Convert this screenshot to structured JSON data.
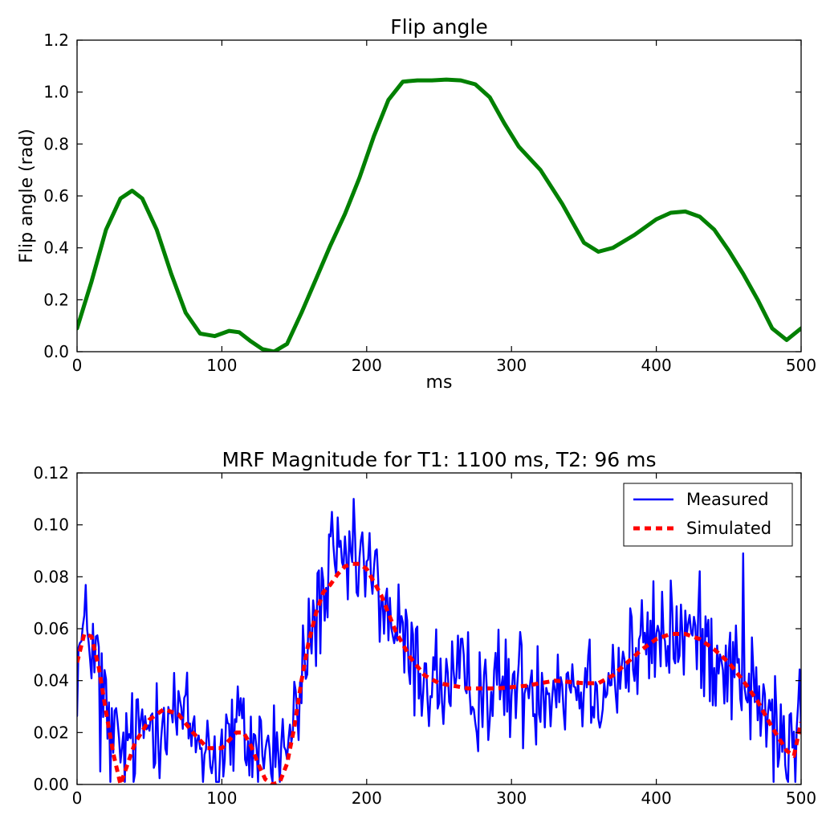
{
  "chart_data": [
    {
      "type": "line",
      "title": "Flip angle",
      "xlabel": "ms",
      "ylabel": "Flip angle (rad)",
      "xlim": [
        0,
        500
      ],
      "ylim": [
        0,
        1.2
      ],
      "xticks": [
        "0",
        "100",
        "200",
        "300",
        "400",
        "500"
      ],
      "yticks": [
        "0.0",
        "0.2",
        "0.4",
        "0.6",
        "0.8",
        "1.0",
        "1.2"
      ],
      "grid": false,
      "series": [
        {
          "name": "Flip angle",
          "color": "#008000",
          "x": [
            0,
            10,
            20,
            30,
            38,
            45,
            55,
            65,
            75,
            85,
            95,
            105,
            112,
            120,
            128,
            136,
            145,
            155,
            165,
            175,
            185,
            195,
            205,
            215,
            225,
            235,
            245,
            255,
            265,
            275,
            285,
            295,
            305,
            320,
            335,
            350,
            360,
            370,
            385,
            400,
            410,
            420,
            430,
            440,
            450,
            460,
            470,
            480,
            490,
            500
          ],
          "values": [
            0.09,
            0.27,
            0.47,
            0.59,
            0.62,
            0.59,
            0.47,
            0.3,
            0.15,
            0.07,
            0.06,
            0.08,
            0.075,
            0.04,
            0.01,
            0.0,
            0.03,
            0.15,
            0.28,
            0.41,
            0.53,
            0.67,
            0.83,
            0.97,
            1.04,
            1.045,
            1.045,
            1.048,
            1.045,
            1.03,
            0.98,
            0.88,
            0.79,
            0.7,
            0.57,
            0.42,
            0.385,
            0.4,
            0.45,
            0.51,
            0.535,
            0.54,
            0.52,
            0.47,
            0.39,
            0.3,
            0.2,
            0.09,
            0.045,
            0.09
          ]
        }
      ]
    },
    {
      "type": "line",
      "title": "MRF Magnitude for T1: 1100 ms, T2: 96 ms",
      "xlabel": "",
      "ylabel": "",
      "xlim": [
        0,
        500
      ],
      "ylim": [
        0,
        0.12
      ],
      "xticks": [
        "0",
        "100",
        "200",
        "300",
        "400",
        "500"
      ],
      "yticks": [
        "0.00",
        "0.02",
        "0.04",
        "0.06",
        "0.08",
        "0.10",
        "0.12"
      ],
      "grid": false,
      "legend": {
        "position": "top-right",
        "entries": [
          "Measured",
          "Simulated"
        ]
      },
      "series": [
        {
          "name": "Measured",
          "color": "#0000ff",
          "style": "solid",
          "noise_amplitude": 0.016,
          "spikes": [
            {
              "x": 176,
              "y": 0.105
            },
            {
              "x": 460,
              "y": 0.089
            },
            {
              "x": 196,
              "y": 0.094
            },
            {
              "x": 16,
              "y": 0.005
            },
            {
              "x": 98,
              "y": 0.001
            }
          ]
        },
        {
          "name": "Simulated",
          "color": "#ff0000",
          "style": "dashed",
          "x": [
            0,
            5,
            10,
            15,
            20,
            25,
            30,
            35,
            40,
            50,
            60,
            70,
            80,
            90,
            100,
            110,
            115,
            120,
            125,
            130,
            135,
            140,
            145,
            150,
            155,
            160,
            165,
            170,
            175,
            180,
            185,
            190,
            195,
            200,
            210,
            220,
            230,
            240,
            250,
            270,
            290,
            310,
            330,
            350,
            360,
            370,
            380,
            390,
            400,
            410,
            420,
            430,
            440,
            450,
            460,
            470,
            480,
            490,
            495,
            500
          ],
          "values": [
            0.047,
            0.058,
            0.057,
            0.045,
            0.028,
            0.012,
            0.0,
            0.008,
            0.016,
            0.025,
            0.029,
            0.027,
            0.02,
            0.014,
            0.014,
            0.02,
            0.02,
            0.015,
            0.008,
            0.002,
            0.0,
            0.001,
            0.008,
            0.022,
            0.04,
            0.055,
            0.066,
            0.074,
            0.077,
            0.081,
            0.084,
            0.085,
            0.085,
            0.083,
            0.073,
            0.059,
            0.049,
            0.042,
            0.039,
            0.037,
            0.037,
            0.038,
            0.04,
            0.039,
            0.039,
            0.042,
            0.047,
            0.052,
            0.056,
            0.058,
            0.058,
            0.056,
            0.052,
            0.047,
            0.04,
            0.032,
            0.022,
            0.013,
            0.011,
            0.024
          ]
        }
      ]
    }
  ]
}
